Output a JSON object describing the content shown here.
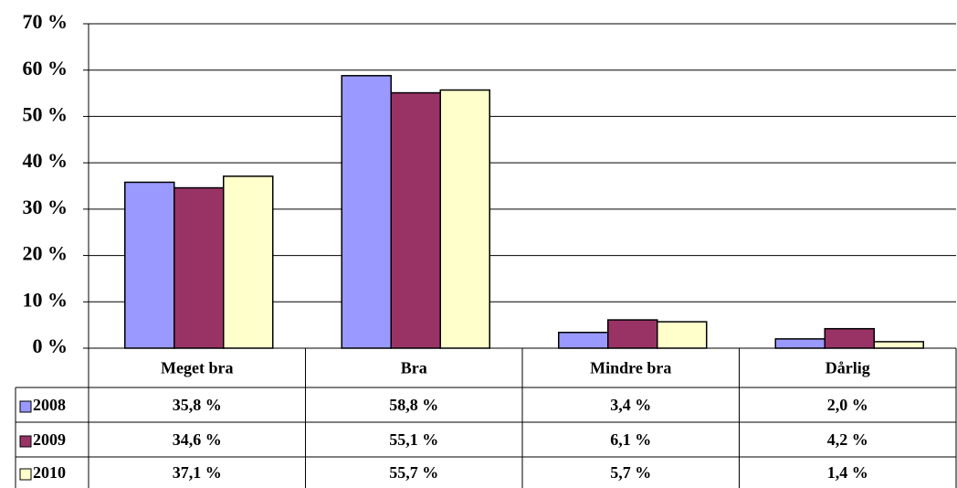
{
  "chart_data": {
    "type": "bar",
    "categories": [
      "Meget bra",
      "Bra",
      "Mindre bra",
      "Dårlig"
    ],
    "series": [
      {
        "name": "2008",
        "color": "#9999ff",
        "values": [
          35.8,
          58.8,
          3.4,
          2.0
        ],
        "value_labels": [
          "35,8 %",
          "58,8 %",
          "3,4 %",
          "2,0 %"
        ]
      },
      {
        "name": "2009",
        "color": "#993366",
        "values": [
          34.6,
          55.1,
          6.1,
          4.2
        ],
        "value_labels": [
          "34,6 %",
          "55,1 %",
          "6,1 %",
          "4,2 %"
        ]
      },
      {
        "name": "2010",
        "color": "#ffffcc",
        "values": [
          37.1,
          55.7,
          5.7,
          1.4
        ],
        "value_labels": [
          "37,1 %",
          "55,7 %",
          "5,7 %",
          "1,4 %"
        ]
      }
    ],
    "ylim": [
      0,
      70
    ],
    "yticks": [
      {
        "value": 0,
        "label": "0 %"
      },
      {
        "value": 10,
        "label": "10 %"
      },
      {
        "value": 20,
        "label": "20 %"
      },
      {
        "value": 30,
        "label": "30 %"
      },
      {
        "value": 40,
        "label": "40 %"
      },
      {
        "value": 50,
        "label": "50 %"
      },
      {
        "value": 60,
        "label": "60 %"
      },
      {
        "value": 70,
        "label": "70 %"
      }
    ],
    "grid": true
  }
}
